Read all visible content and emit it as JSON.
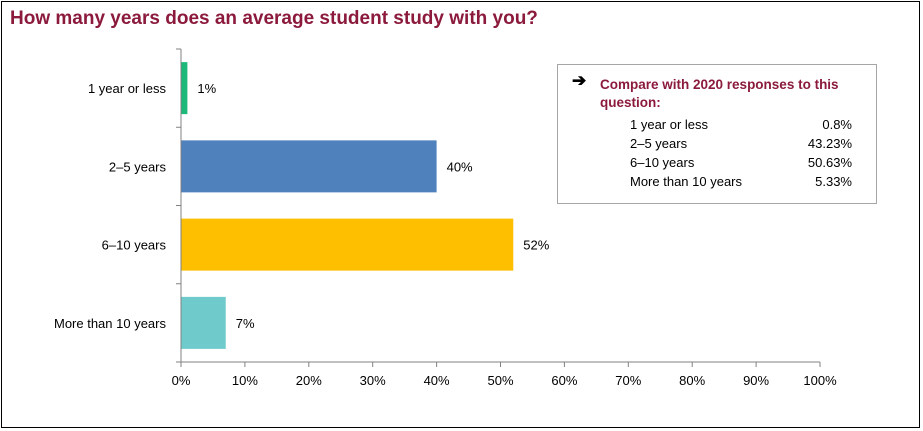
{
  "chart_data": {
    "type": "bar",
    "orientation": "horizontal",
    "title": "How many years does an average student study with you?",
    "categories": [
      "1 year or less",
      "2–5 years",
      "6–10 years",
      "More than 10 years"
    ],
    "values": [
      1,
      40,
      52,
      7
    ],
    "value_labels": [
      "1%",
      "40%",
      "52%",
      "7%"
    ],
    "colors": [
      "#1DB97A",
      "#4F81BD",
      "#FDBF00",
      "#6FCBCB"
    ],
    "xlim": [
      0,
      100
    ],
    "xticks": [
      "0%",
      "10%",
      "20%",
      "30%",
      "40%",
      "50%",
      "60%",
      "70%",
      "80%",
      "90%",
      "100%"
    ],
    "grid": false,
    "annotation": {
      "title": "Compare with 2020 responses to this question:",
      "rows": [
        {
          "label": "1 year or less",
          "value": "0.8%"
        },
        {
          "label": "2–5 years",
          "value": "43.23%"
        },
        {
          "label": "6–10 years",
          "value": "50.63%"
        },
        {
          "label": "More than 10 years",
          "value": "5.33%"
        }
      ]
    }
  },
  "colors": {
    "title": "#8B1A3C",
    "axis": "#808080"
  }
}
